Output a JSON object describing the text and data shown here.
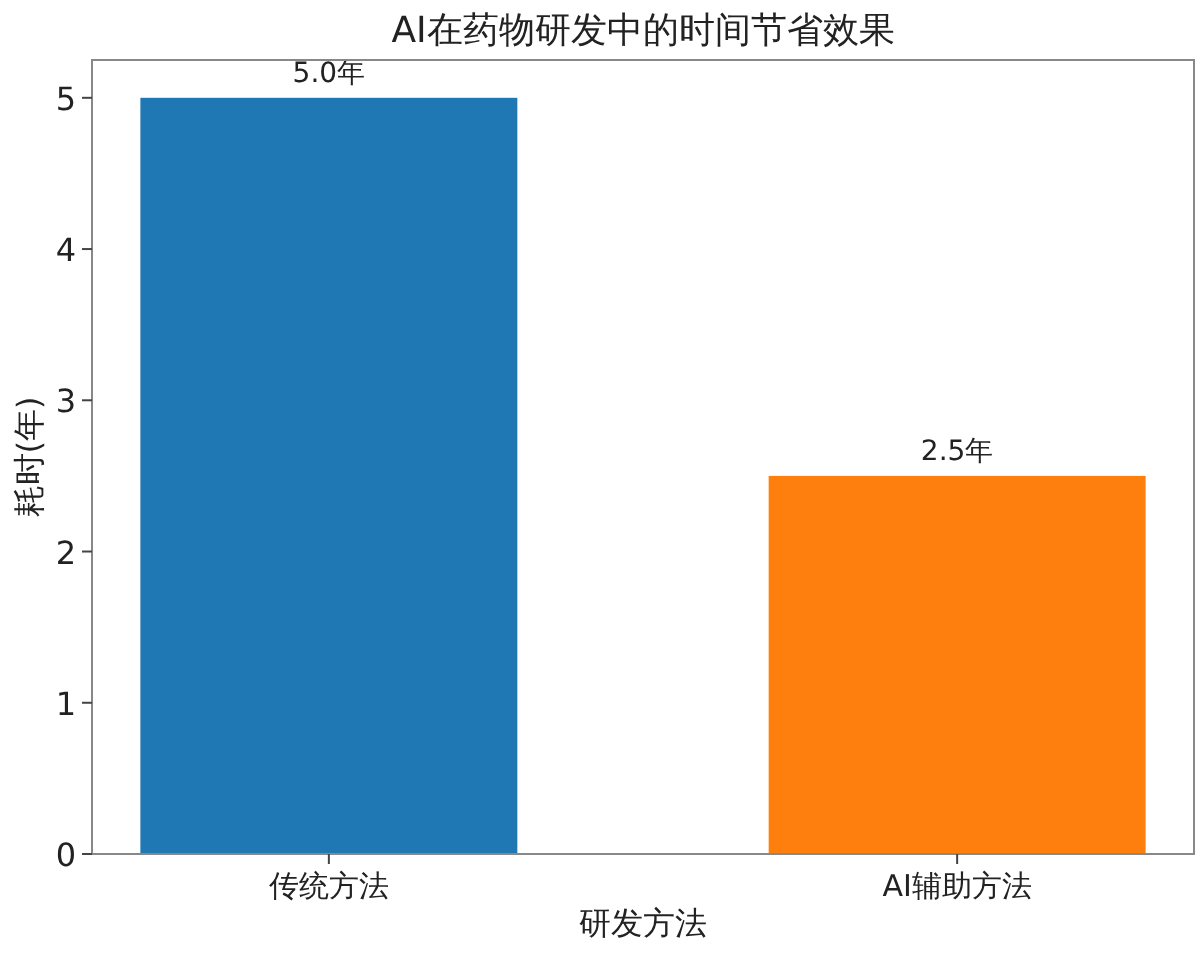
{
  "chart_data": {
    "type": "bar",
    "title": "AI在药物研发中的时间节省效果",
    "xlabel": "研发方法",
    "ylabel": "耗时(年)",
    "categories": [
      "传统方法",
      "AI辅助方法"
    ],
    "values": [
      5.0,
      2.5
    ],
    "colors": [
      "#1f77b4",
      "#ff7f0e"
    ],
    "value_labels": [
      "5.0年",
      "2.5年"
    ],
    "ylim": [
      0,
      5.25
    ],
    "yticks": [
      0,
      1,
      2,
      3,
      4,
      5
    ],
    "grid": false
  }
}
